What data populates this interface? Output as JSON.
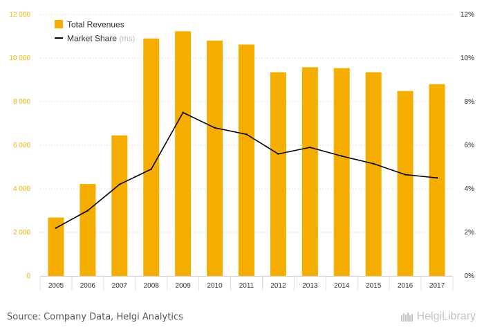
{
  "chart_data": {
    "type": "bar",
    "categories": [
      "2005",
      "2006",
      "2007",
      "2008",
      "2009",
      "2010",
      "2011",
      "2012",
      "2013",
      "2014",
      "2015",
      "2016",
      "2017"
    ],
    "series": [
      {
        "name": "Total Revenues",
        "type": "bar",
        "axis": "left",
        "color": "#f5ad00",
        "values": [
          2680,
          4220,
          6450,
          10900,
          11230,
          10800,
          10620,
          9350,
          9580,
          9540,
          9350,
          8490,
          8800
        ]
      },
      {
        "name": "Market Share",
        "legend_suffix": "(rhs)",
        "type": "line",
        "axis": "right",
        "color": "#000000",
        "values": [
          2.2,
          3.0,
          4.2,
          4.9,
          7.5,
          6.8,
          6.5,
          5.6,
          5.9,
          5.5,
          5.15,
          4.65,
          4.5
        ]
      }
    ],
    "y_left": {
      "ylim": [
        0,
        12000
      ],
      "ticks": [
        0,
        2000,
        4000,
        6000,
        8000,
        10000,
        12000
      ],
      "tick_labels": [
        "0",
        "2 000",
        "4 000",
        "6 000",
        "8 000",
        "10 000",
        "12 000"
      ]
    },
    "y_right": {
      "ylim": [
        0,
        12
      ],
      "ticks": [
        0,
        2,
        4,
        6,
        8,
        10,
        12
      ],
      "tick_labels": [
        "0%",
        "2%",
        "4%",
        "6%",
        "8%",
        "10%",
        "12%"
      ]
    },
    "grid": true,
    "legend_position": "top-left",
    "tick_color": "#f5ad00"
  },
  "footer": {
    "source": "Source: Company Data, Helgi Analytics",
    "brand": "HelgiLibrary"
  }
}
